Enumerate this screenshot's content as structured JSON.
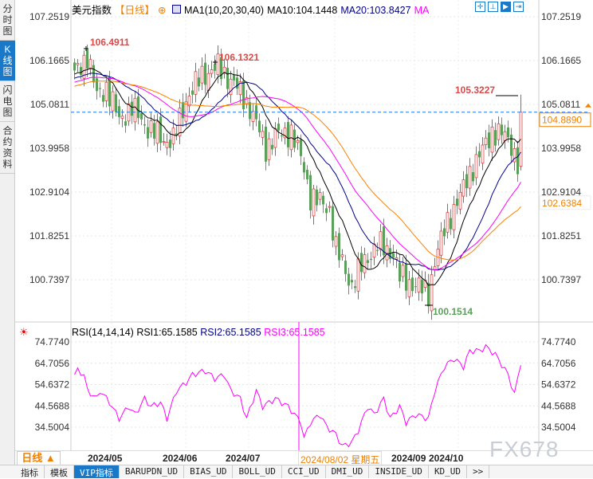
{
  "side_tabs": [
    "分时图",
    "K线图",
    "闪电图",
    "合约资料"
  ],
  "header": {
    "title": "美元指数",
    "period": "【日线】",
    "ma_name": "MA1(10,20,30,40)",
    "ma10": "MA10:104.1448",
    "ma20": "MA20:103.8427",
    "ma_more": "MA"
  },
  "toolbar_icons": [
    "crosshair-icon",
    "zoom-fit-icon",
    "scroll-right-icon",
    "exit-icon"
  ],
  "price_axis": [
    "107.2519",
    "106.1665",
    "105.0811",
    "103.9958",
    "102.9104",
    "101.8251",
    "100.7397"
  ],
  "annotations": {
    "high1": "106.4911",
    "high2": "106.1321",
    "high3": "105.3227",
    "low": "100.1514",
    "current": "104.8890",
    "ma40_last": "102.6384"
  },
  "rsi": {
    "header": "RSI(14,14,14)",
    "rsi1": "RSI1:65.1585",
    "rsi2": "RSI2:65.1585",
    "rsi3": "RSI3:65.1585",
    "axis": [
      "74.7740",
      "64.7056",
      "54.6372",
      "44.5688",
      "34.5004"
    ]
  },
  "dates": {
    "period_btn": "日线 ▲",
    "labels": [
      "2024/05",
      "2024/06",
      "2024/07",
      "2024/09",
      "2024/10"
    ],
    "cursor": "2024/08/02 星期五"
  },
  "bottom_tabs": [
    "指标",
    "模板",
    "VIP指标",
    "BARUPDN_UD",
    "BIAS_UD",
    "BOLL_UD",
    "CCI_UD",
    "DMI_UD",
    "INSIDE_UD",
    "KD_UD",
    ">>"
  ],
  "watermark": "FX678",
  "colors": {
    "up": "#d94a4a",
    "down": "#5aa05a",
    "ma10": "#000000",
    "ma20": "#00008b",
    "ma30": "#ff00ff",
    "ma40": "#ff8000",
    "accent": "#1a78c8",
    "rsi": "#ff00ff"
  },
  "chart_data": {
    "type": "candlestick",
    "ylim": [
      99.9,
      107.25
    ],
    "close_path": [
      [
        0,
        105.8
      ],
      [
        4,
        106.3
      ],
      [
        7,
        105.3
      ],
      [
        10,
        105.5
      ],
      [
        14,
        104.7
      ],
      [
        18,
        105.0
      ],
      [
        23,
        104.5
      ],
      [
        28,
        104.2
      ],
      [
        31,
        104.2
      ],
      [
        35,
        105.2
      ],
      [
        40,
        105.8
      ],
      [
        45,
        106.0
      ],
      [
        50,
        105.6
      ],
      [
        55,
        105.0
      ],
      [
        60,
        104.0
      ],
      [
        63,
        104.3
      ],
      [
        68,
        104.4
      ],
      [
        72,
        103.5
      ],
      [
        74,
        102.8
      ],
      [
        80,
        102.5
      ],
      [
        82,
        101.5
      ],
      [
        87,
        100.6
      ],
      [
        91,
        101.2
      ],
      [
        95,
        101.6
      ],
      [
        100,
        101.4
      ],
      [
        102,
        100.8
      ],
      [
        107,
        100.6
      ],
      [
        111,
        100.4
      ],
      [
        113,
        101.2
      ],
      [
        117,
        102.2
      ],
      [
        121,
        102.8
      ],
      [
        124,
        103.4
      ],
      [
        127,
        103.8
      ],
      [
        131,
        104.4
      ],
      [
        135,
        104.3
      ],
      [
        137,
        104.1
      ],
      [
        139,
        103.6
      ],
      [
        140,
        104.889
      ]
    ],
    "rsi_path": [
      [
        0,
        59.3
      ],
      [
        1,
        61.2
      ],
      [
        3,
        59.3
      ],
      [
        4,
        51.8
      ],
      [
        7,
        48.0
      ],
      [
        8,
        51.8
      ],
      [
        11,
        46.2
      ],
      [
        14,
        38.6
      ],
      [
        17,
        44.3
      ],
      [
        19,
        40.5
      ],
      [
        22,
        48.0
      ],
      [
        24,
        44.3
      ],
      [
        27,
        46.2
      ],
      [
        29,
        38.6
      ],
      [
        32,
        51.8
      ],
      [
        35,
        55.6
      ],
      [
        37,
        59.3
      ],
      [
        41,
        61.2
      ],
      [
        44,
        57.5
      ],
      [
        47,
        59.3
      ],
      [
        49,
        51.8
      ],
      [
        52,
        48.0
      ],
      [
        54,
        38.6
      ],
      [
        57,
        51.8
      ],
      [
        59,
        44.3
      ],
      [
        63,
        48.0
      ],
      [
        67,
        44.3
      ],
      [
        71,
        36.8
      ],
      [
        72,
        29.2
      ],
      [
        74,
        36.8
      ],
      [
        77,
        40.5
      ],
      [
        79,
        34.9
      ],
      [
        82,
        31.1
      ],
      [
        84,
        25.5
      ],
      [
        87,
        27.4
      ],
      [
        89,
        33.0
      ],
      [
        92,
        44.3
      ],
      [
        94,
        40.5
      ],
      [
        97,
        48.0
      ],
      [
        99,
        38.6
      ],
      [
        102,
        44.3
      ],
      [
        104,
        36.8
      ],
      [
        107,
        40.5
      ],
      [
        111,
        38.6
      ],
      [
        113,
        51.8
      ],
      [
        116,
        63.1
      ],
      [
        119,
        66.9
      ],
      [
        122,
        63.1
      ],
      [
        124,
        70.6
      ],
      [
        127,
        70.6
      ],
      [
        129,
        72.5
      ],
      [
        132,
        68.8
      ],
      [
        136,
        59.3
      ],
      [
        138,
        49.9
      ],
      [
        140,
        65.2
      ]
    ]
  }
}
